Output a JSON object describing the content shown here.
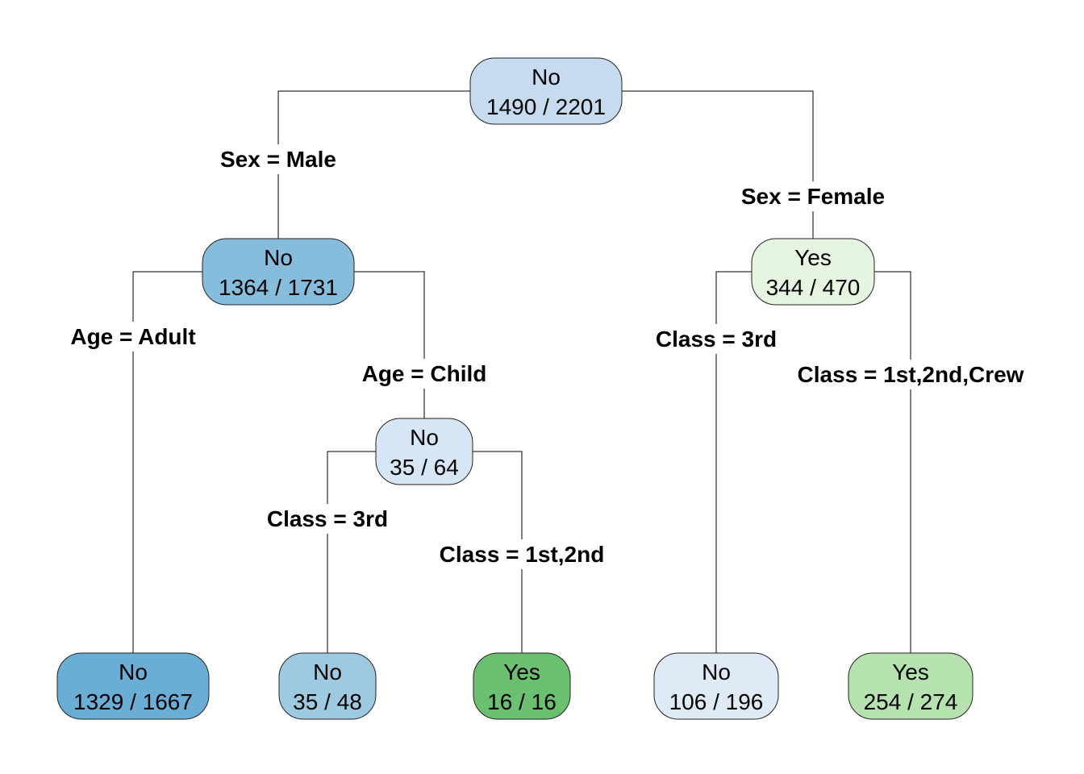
{
  "nodes": [
    {
      "id": "root",
      "class": "No",
      "count": "1490 / 2201",
      "color": "#c6dbef"
    },
    {
      "id": "male",
      "class": "No",
      "count": "1364 / 1731",
      "color": "#86bcdc"
    },
    {
      "id": "female",
      "class": "Yes",
      "count": "344 / 470",
      "color": "#e5f5e0"
    },
    {
      "id": "male-child",
      "class": "No",
      "count": "35 / 64",
      "color": "#d6e6f4"
    },
    {
      "id": "male-adult",
      "class": "No",
      "count": "1329 / 1667",
      "color": "#6aaed6"
    },
    {
      "id": "male-child-3rd",
      "class": "No",
      "count": "35 / 48",
      "color": "#9ecae1"
    },
    {
      "id": "male-child-1st2nd",
      "class": "Yes",
      "count": "16 / 16",
      "color": "#6bbf70"
    },
    {
      "id": "female-3rd",
      "class": "No",
      "count": "106 / 196",
      "color": "#deebf7"
    },
    {
      "id": "female-upper",
      "class": "Yes",
      "count": "254 / 274",
      "color": "#b5e2ae"
    }
  ],
  "splits": [
    {
      "id": "sex-male",
      "label": "Sex = Male"
    },
    {
      "id": "sex-female",
      "label": "Sex = Female"
    },
    {
      "id": "age-adult",
      "label": "Age = Adult"
    },
    {
      "id": "age-child",
      "label": "Age = Child"
    },
    {
      "id": "class-3rd-male",
      "label": "Class = 3rd"
    },
    {
      "id": "class-1st2nd",
      "label": "Class = 1st,2nd"
    },
    {
      "id": "class-3rd-female",
      "label": "Class = 3rd"
    },
    {
      "id": "class-upper",
      "label": "Class = 1st,2nd,Crew"
    }
  ],
  "edges": [
    {
      "from": "root",
      "to": "male",
      "split": "sex-male"
    },
    {
      "from": "root",
      "to": "female",
      "split": "sex-female"
    },
    {
      "from": "male",
      "to": "male-adult",
      "split": "age-adult"
    },
    {
      "from": "male",
      "to": "male-child",
      "split": "age-child"
    },
    {
      "from": "male-child",
      "to": "male-child-3rd",
      "split": "class-3rd-male"
    },
    {
      "from": "male-child",
      "to": "male-child-1st2nd",
      "split": "class-1st2nd"
    },
    {
      "from": "female",
      "to": "female-3rd",
      "split": "class-3rd-female"
    },
    {
      "from": "female",
      "to": "female-upper",
      "split": "class-upper"
    }
  ]
}
